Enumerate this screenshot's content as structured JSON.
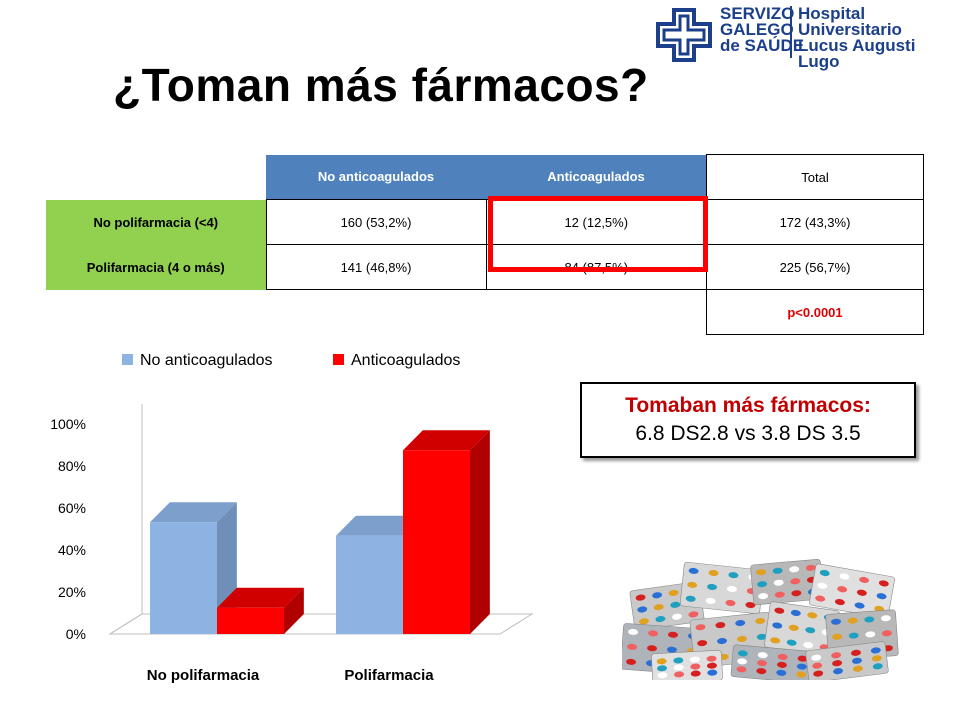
{
  "slide": {
    "title": "¿Toman más fármacos?"
  },
  "logo": {
    "org_lines": [
      "SERVIZO",
      "GALEGO",
      "de SAÚDE"
    ],
    "hospital_lines": [
      "Hospital Universitario",
      "Lucus Augusti",
      "Lugo"
    ],
    "brand_color": "#1b3f8b"
  },
  "table": {
    "headers": [
      "No anticoagulados",
      "Anticoagulados",
      "Total"
    ],
    "rows": [
      {
        "label": "No polifarmacia (<4)",
        "cells": [
          "160 (53,2%)",
          "12 (12,5%)",
          "172 (43,3%)"
        ]
      },
      {
        "label": "Polifarmacia (4 o más)",
        "cells": [
          "141 (46,8%)",
          "84 (87,5%)",
          "225 (56,7%)"
        ]
      }
    ],
    "pvalue": "p<0.0001"
  },
  "callout": {
    "heading": "Tomaban más fármacos:",
    "body": "6.8 DS2.8 vs 3.8 DS 3.5"
  },
  "colors": {
    "series1": "#8db3e2",
    "series2": "#ff0000",
    "header": "#4f81bd",
    "row_header": "#92d050",
    "accent": "#c00000"
  },
  "chart_data": {
    "type": "bar",
    "categories": [
      "No polifarmacia",
      "Polifarmacia"
    ],
    "series": [
      {
        "name": "No anticoagulados",
        "values": [
          53.2,
          46.8
        ]
      },
      {
        "name": "Anticoagulados",
        "values": [
          12.5,
          87.5
        ]
      }
    ],
    "yticks": [
      "0%",
      "20%",
      "40%",
      "60%",
      "80%",
      "100%"
    ],
    "ylim": [
      0,
      100
    ],
    "legend": "top",
    "style": "3d-clustered"
  }
}
